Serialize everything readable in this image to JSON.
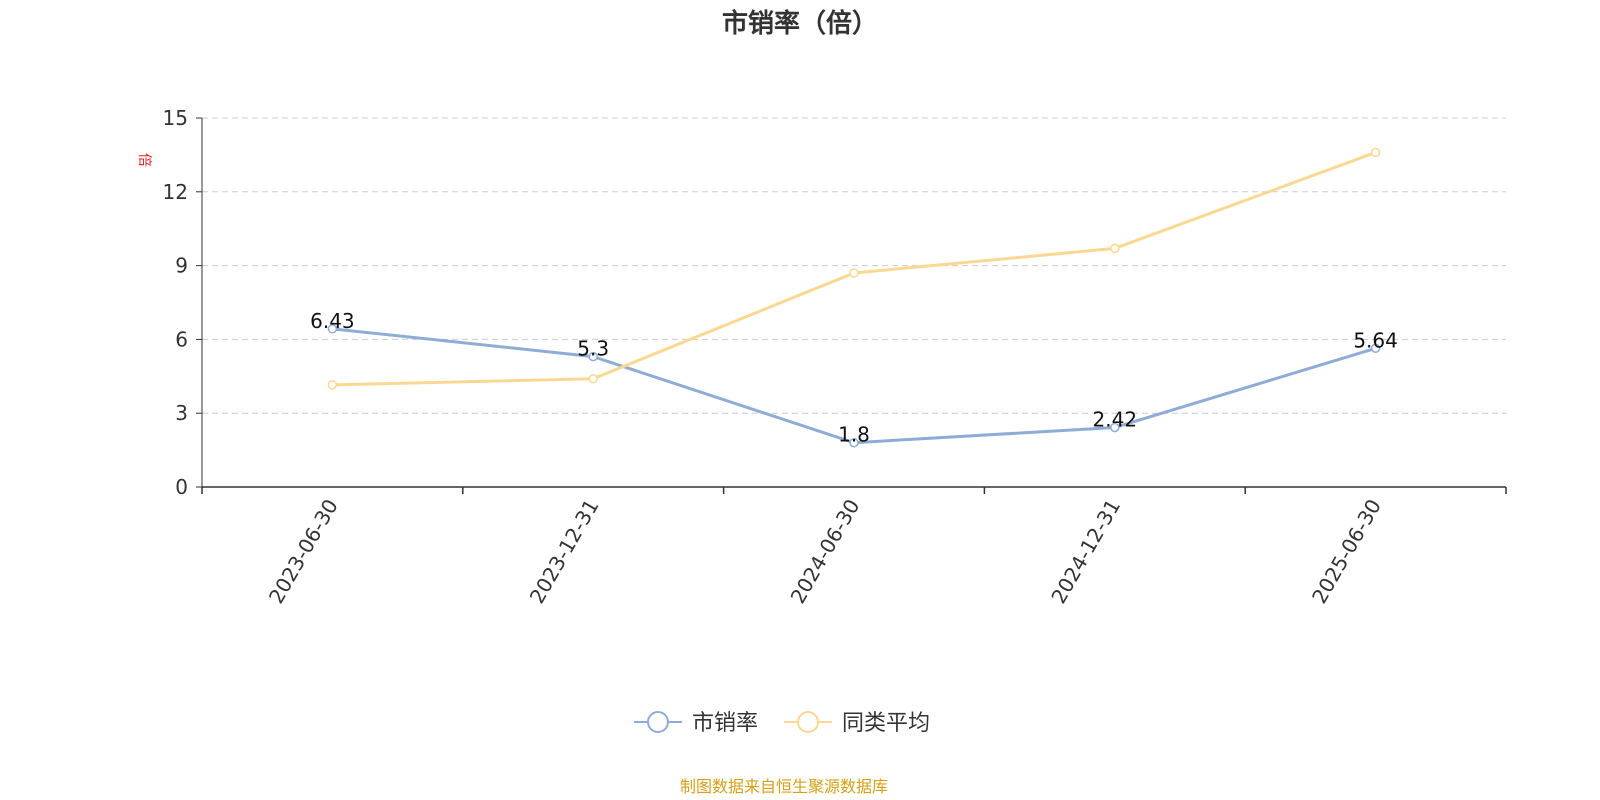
{
  "chart_data": {
    "type": "line",
    "title": "市销率（倍）",
    "unit_label": "倍",
    "categories": [
      "2023-06-30",
      "2023-12-31",
      "2024-06-30",
      "2024-12-31",
      "2025-06-30"
    ],
    "ylim": [
      0,
      15
    ],
    "yticks": [
      0,
      3,
      6,
      9,
      12,
      15
    ],
    "ytick_labels": [
      "0",
      "3",
      "6",
      "9",
      "12",
      "15"
    ],
    "grid": true,
    "legend_position": "bottom-center",
    "series": [
      {
        "name": "市销率",
        "values": [
          6.43,
          5.3,
          1.8,
          2.42,
          5.64
        ],
        "labels": [
          "6.43",
          "5.3",
          "1.8",
          "2.42",
          "5.64"
        ],
        "color": "#8eacd6",
        "show_labels": true
      },
      {
        "name": "同类平均",
        "values": [
          4.15,
          4.4,
          8.7,
          9.7,
          13.6
        ],
        "color": "#fbd892",
        "show_labels": false
      }
    ],
    "source": "制图数据来自恒生聚源数据库",
    "colors": {
      "axis": "#333333",
      "grid": "#cccccc",
      "unit": "#e02020",
      "source": "#d4a017"
    }
  }
}
